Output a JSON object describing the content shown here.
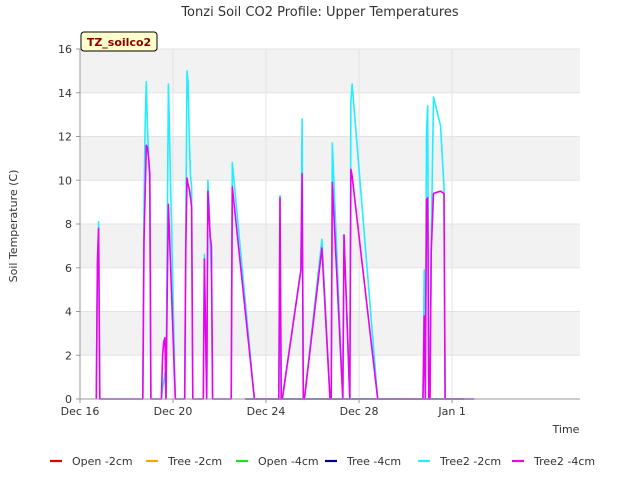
{
  "chart_data": {
    "type": "line",
    "title": "Tonzi Soil CO2 Profile: Upper Temperatures",
    "site_label": "TZ_soilco2",
    "xlabel": "Time",
    "ylabel": "Soil Temperature (C)",
    "ylim": [
      0,
      16
    ],
    "xlim": [
      0,
      21.5
    ],
    "yticks": [
      0,
      2,
      4,
      6,
      8,
      10,
      12,
      14,
      16
    ],
    "xticks": [
      {
        "value": 0,
        "label": "Dec 16"
      },
      {
        "value": 4,
        "label": "Dec 20"
      },
      {
        "value": 8,
        "label": "Dec 24"
      },
      {
        "value": 12,
        "label": "Dec 28"
      },
      {
        "value": 16,
        "label": "Jan 1"
      }
    ],
    "x_unit": "days since Dec 16",
    "grid": true,
    "legend_position": "bottom",
    "series": [
      {
        "name": "Open -2cm",
        "color": "#dd0000",
        "x": [],
        "y": []
      },
      {
        "name": "Tree -2cm",
        "color": "#ffa500",
        "x": [],
        "y": []
      },
      {
        "name": "Open -4cm",
        "color": "#22dd22",
        "x": [],
        "y": []
      },
      {
        "name": "Tree -4cm",
        "color": "#00008b",
        "x": [
          7.1,
          7.8,
          10.6,
          16.5
        ],
        "y": [
          0,
          0,
          0,
          0
        ]
      },
      {
        "name": "Tree2 -2cm",
        "color": "#22eeff",
        "x": [
          0.7,
          0.75,
          0.8,
          0.85,
          2.7,
          2.75,
          2.8,
          2.85,
          2.9,
          2.95,
          3.0,
          3.05,
          3.5,
          3.55,
          3.6,
          3.65,
          3.7,
          3.75,
          3.8,
          4.1,
          4.5,
          4.55,
          4.6,
          4.65,
          4.7,
          4.75,
          4.8,
          4.85,
          5.3,
          5.35,
          5.45,
          5.5,
          5.55,
          5.6,
          5.65,
          5.7,
          6.5,
          6.55,
          7.5,
          7.55,
          7.9,
          8.55,
          8.6,
          8.65,
          8.7,
          9.5,
          9.55,
          9.6,
          9.65,
          10.4,
          10.75,
          10.8,
          10.85,
          11.3,
          11.35,
          11.6,
          11.65,
          11.7,
          12.8,
          12.85,
          13.8,
          13.85,
          14.75,
          14.8,
          14.85,
          14.9,
          14.95,
          15.0,
          15.05,
          15.1,
          15.2,
          15.5,
          15.65,
          15.7,
          15.75,
          15.8,
          15.85,
          15.9,
          16.65,
          16.7,
          16.75,
          16.8,
          16.85,
          16.9,
          16.95
        ],
        "y": [
          0,
          6.2,
          8.1,
          0,
          0,
          8.8,
          12.4,
          14.5,
          12.5,
          11.2,
          9.5,
          0,
          0,
          0.5,
          0.8,
          1.2,
          0,
          7.1,
          14.4,
          0,
          0,
          7.7,
          15.0,
          14.5,
          11.9,
          10.2,
          9.7,
          0,
          0,
          6.6,
          0,
          10.0,
          8.8,
          7.2,
          5.5,
          0,
          0,
          10.8,
          0,
          0,
          0,
          0,
          9.3,
          0,
          0,
          5.9,
          12.8,
          0,
          0,
          7.3,
          0,
          0,
          11.7,
          0,
          7.5,
          0,
          13.6,
          14.4,
          0,
          0,
          0,
          0,
          0,
          5.9,
          0,
          12.2,
          13.4,
          0,
          0,
          7.1,
          13.8,
          12.5,
          9.7,
          0,
          0,
          0,
          0,
          0,
          0,
          0,
          0,
          0,
          0,
          0,
          0
        ]
      },
      {
        "name": "Tree2 -4cm",
        "color": "#ee00ee",
        "x": [
          0.7,
          0.75,
          0.8,
          0.85,
          2.7,
          2.75,
          2.8,
          2.85,
          2.9,
          2.95,
          3.0,
          3.05,
          3.5,
          3.55,
          3.6,
          3.65,
          3.7,
          3.75,
          3.8,
          4.1,
          4.5,
          4.55,
          4.6,
          4.65,
          4.7,
          4.75,
          4.8,
          4.85,
          5.3,
          5.35,
          5.45,
          5.5,
          5.55,
          5.6,
          5.65,
          5.7,
          6.5,
          6.55,
          7.5,
          7.55,
          7.9,
          8.55,
          8.6,
          8.65,
          8.7,
          9.5,
          9.55,
          9.6,
          9.65,
          10.4,
          10.75,
          10.8,
          10.85,
          11.3,
          11.35,
          11.6,
          11.65,
          11.7,
          12.8,
          12.85,
          13.8,
          13.85,
          14.75,
          14.8,
          14.85,
          14.9,
          14.95,
          15.0,
          15.05,
          15.1,
          15.2,
          15.5,
          15.65,
          15.7,
          15.75,
          15.8,
          15.85,
          15.9,
          16.65,
          16.7,
          16.75,
          16.8,
          16.85,
          16.9,
          16.95
        ],
        "y": [
          0,
          6.2,
          7.8,
          0,
          0,
          7.2,
          9.3,
          11.6,
          11.5,
          11.0,
          10.3,
          0,
          0,
          2.0,
          2.6,
          2.8,
          0,
          4.8,
          8.9,
          0,
          0,
          6.9,
          10.1,
          9.8,
          9.6,
          9.2,
          8.8,
          0,
          0,
          6.4,
          0,
          9.5,
          8.4,
          7.4,
          7.0,
          0,
          0,
          9.7,
          0,
          0,
          0,
          0,
          9.2,
          0,
          0,
          5.9,
          10.3,
          0,
          0,
          6.9,
          0,
          0,
          9.9,
          0,
          7.5,
          0,
          10.5,
          10.2,
          0,
          0,
          0,
          0,
          0,
          3.8,
          0,
          9.1,
          9.2,
          0,
          0,
          6.7,
          9.4,
          9.5,
          9.4,
          0,
          0,
          0,
          0,
          0,
          0,
          0,
          0,
          0,
          0,
          0,
          0
        ]
      }
    ]
  }
}
